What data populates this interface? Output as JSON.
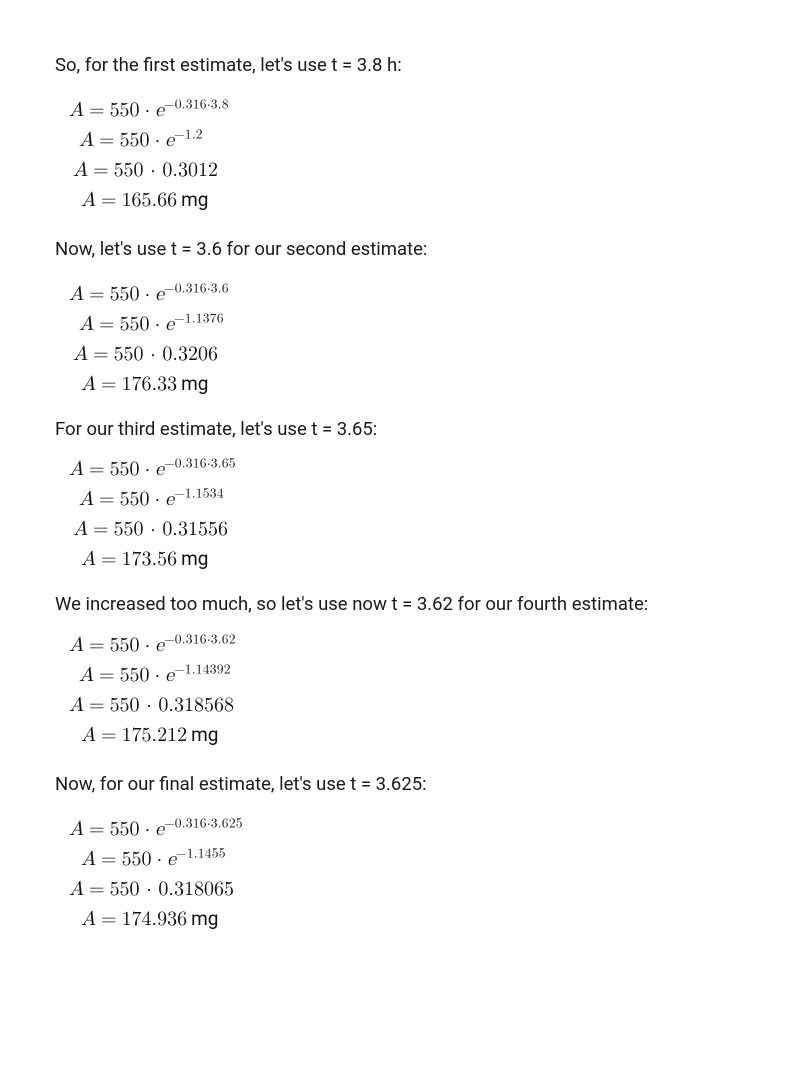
{
  "typography": {
    "body_font": "sans-serif system stack",
    "math_font": "serif / Latin Modern-like",
    "body_fontsize_pt": 14,
    "math_fontsize_pt": 15,
    "text_color": "#111111",
    "background_color": "#ffffff"
  },
  "sections": [
    {
      "intro": "So, for the first estimate, let's use t = 3.8 h:",
      "lines": [
        {
          "indent": "ind-0",
          "lhs": "A",
          "rhs_prefix": "550",
          "exp": "−0.316·3.8"
        },
        {
          "indent": "ind-1",
          "lhs": "A",
          "rhs_prefix": "550",
          "exp": "−1.2"
        },
        {
          "indent": "ind-2",
          "lhs": "A",
          "rhs_plain": "550 · 0.3012"
        },
        {
          "indent": "ind-3",
          "lhs": "A",
          "rhs_plain": "165.66",
          "unit": "mg"
        }
      ]
    },
    {
      "intro": "Now, let's use t = 3.6 for our second estimate:",
      "lines": [
        {
          "indent": "ind-0",
          "lhs": "A",
          "rhs_prefix": "550",
          "exp": "−0.316·3.6"
        },
        {
          "indent": "ind-1",
          "lhs": "A",
          "rhs_prefix": "550",
          "exp": "−1.1376"
        },
        {
          "indent": "ind-2",
          "lhs": "A",
          "rhs_plain": "550 · 0.3206"
        },
        {
          "indent": "ind-3",
          "lhs": "A",
          "rhs_plain": "176.33",
          "unit": "mg"
        }
      ]
    },
    {
      "intro": "For our third estimate, let's use t = 3.65:",
      "intro_class": "tight",
      "lines": [
        {
          "indent": "ind-0",
          "lhs": "A",
          "rhs_prefix": "550",
          "exp": "−0.316·3.65"
        },
        {
          "indent": "ind-1",
          "lhs": "A",
          "rhs_prefix": "550",
          "exp": "−1.1534"
        },
        {
          "indent": "ind-2",
          "lhs": "A",
          "rhs_plain": "550 · 0.31556"
        },
        {
          "indent": "ind-3",
          "lhs": "A",
          "rhs_plain": "173.56",
          "unit": "mg"
        }
      ]
    },
    {
      "intro": "We increased too much, so let's use now t = 3.62 for our fourth estimate:",
      "intro_class": "tight",
      "lines": [
        {
          "indent": "ind-0",
          "lhs": "A",
          "rhs_prefix": "550",
          "exp": "−0.316·3.62"
        },
        {
          "indent": "ind-1",
          "lhs": "A",
          "rhs_prefix": "550",
          "exp": "−1.14392"
        },
        {
          "indent": "ind-0",
          "lhs": "A",
          "rhs_plain": "550 · 0.318568"
        },
        {
          "indent": "ind-3",
          "lhs": "A",
          "rhs_plain": "175.212",
          "unit": "mg"
        }
      ]
    },
    {
      "intro": "Now, for our final estimate, let's use t = 3.625:",
      "lines": [
        {
          "indent": "ind-0",
          "lhs": "A",
          "rhs_prefix": "550",
          "exp": "−0.316·3.625"
        },
        {
          "indent": "ind-3",
          "lhs": "A",
          "rhs_prefix": "550",
          "exp": "−1.1455"
        },
        {
          "indent": "ind-0",
          "lhs": "A",
          "rhs_plain": "550 · 0.318065"
        },
        {
          "indent": "ind-3",
          "lhs": "A",
          "rhs_plain": "174.936",
          "unit": "mg"
        }
      ]
    }
  ]
}
